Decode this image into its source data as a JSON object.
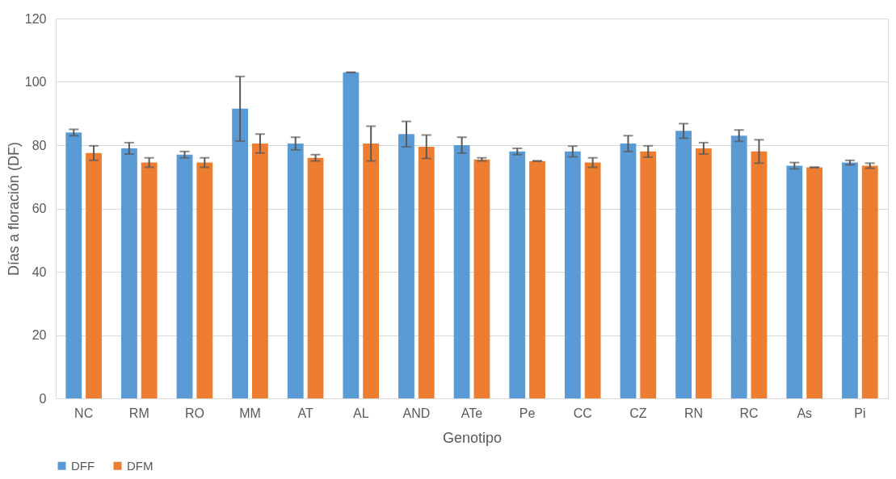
{
  "chart_data": {
    "type": "bar",
    "xlabel": "Genotipo",
    "ylabel": "Días a floración (DF)",
    "categories": [
      "NC",
      "RM",
      "RO",
      "MM",
      "AT",
      "AL",
      "AND",
      "ATe",
      "Pe",
      "CC",
      "CZ",
      "RN",
      "RC",
      "As",
      "Pi"
    ],
    "series": [
      {
        "name": "DFF",
        "color": "#5b9bd5",
        "values": [
          84,
          79,
          77,
          91.5,
          80.5,
          103,
          83.5,
          80,
          78,
          78,
          80.5,
          84.5,
          83,
          73.5,
          74.5
        ],
        "errors": [
          1,
          1.8,
          1,
          10.2,
          2,
          0,
          4,
          2.5,
          1,
          1.7,
          2.5,
          2.3,
          1.8,
          1,
          0.7
        ]
      },
      {
        "name": "DFM",
        "color": "#ed7d31",
        "values": [
          77.5,
          74.5,
          74.5,
          80.5,
          76,
          80.5,
          79.5,
          75.5,
          75,
          74.5,
          78,
          79,
          78,
          73,
          73.5
        ],
        "errors": [
          2.3,
          1.5,
          1.5,
          3,
          1,
          5.5,
          3.7,
          0.5,
          0,
          1.5,
          1.8,
          1.8,
          3.7,
          0,
          0.8
        ]
      }
    ],
    "ylim": [
      0,
      120
    ],
    "yticks": [
      0,
      20,
      40,
      60,
      80,
      100,
      120
    ],
    "grid": "y",
    "legend": "bottom"
  }
}
